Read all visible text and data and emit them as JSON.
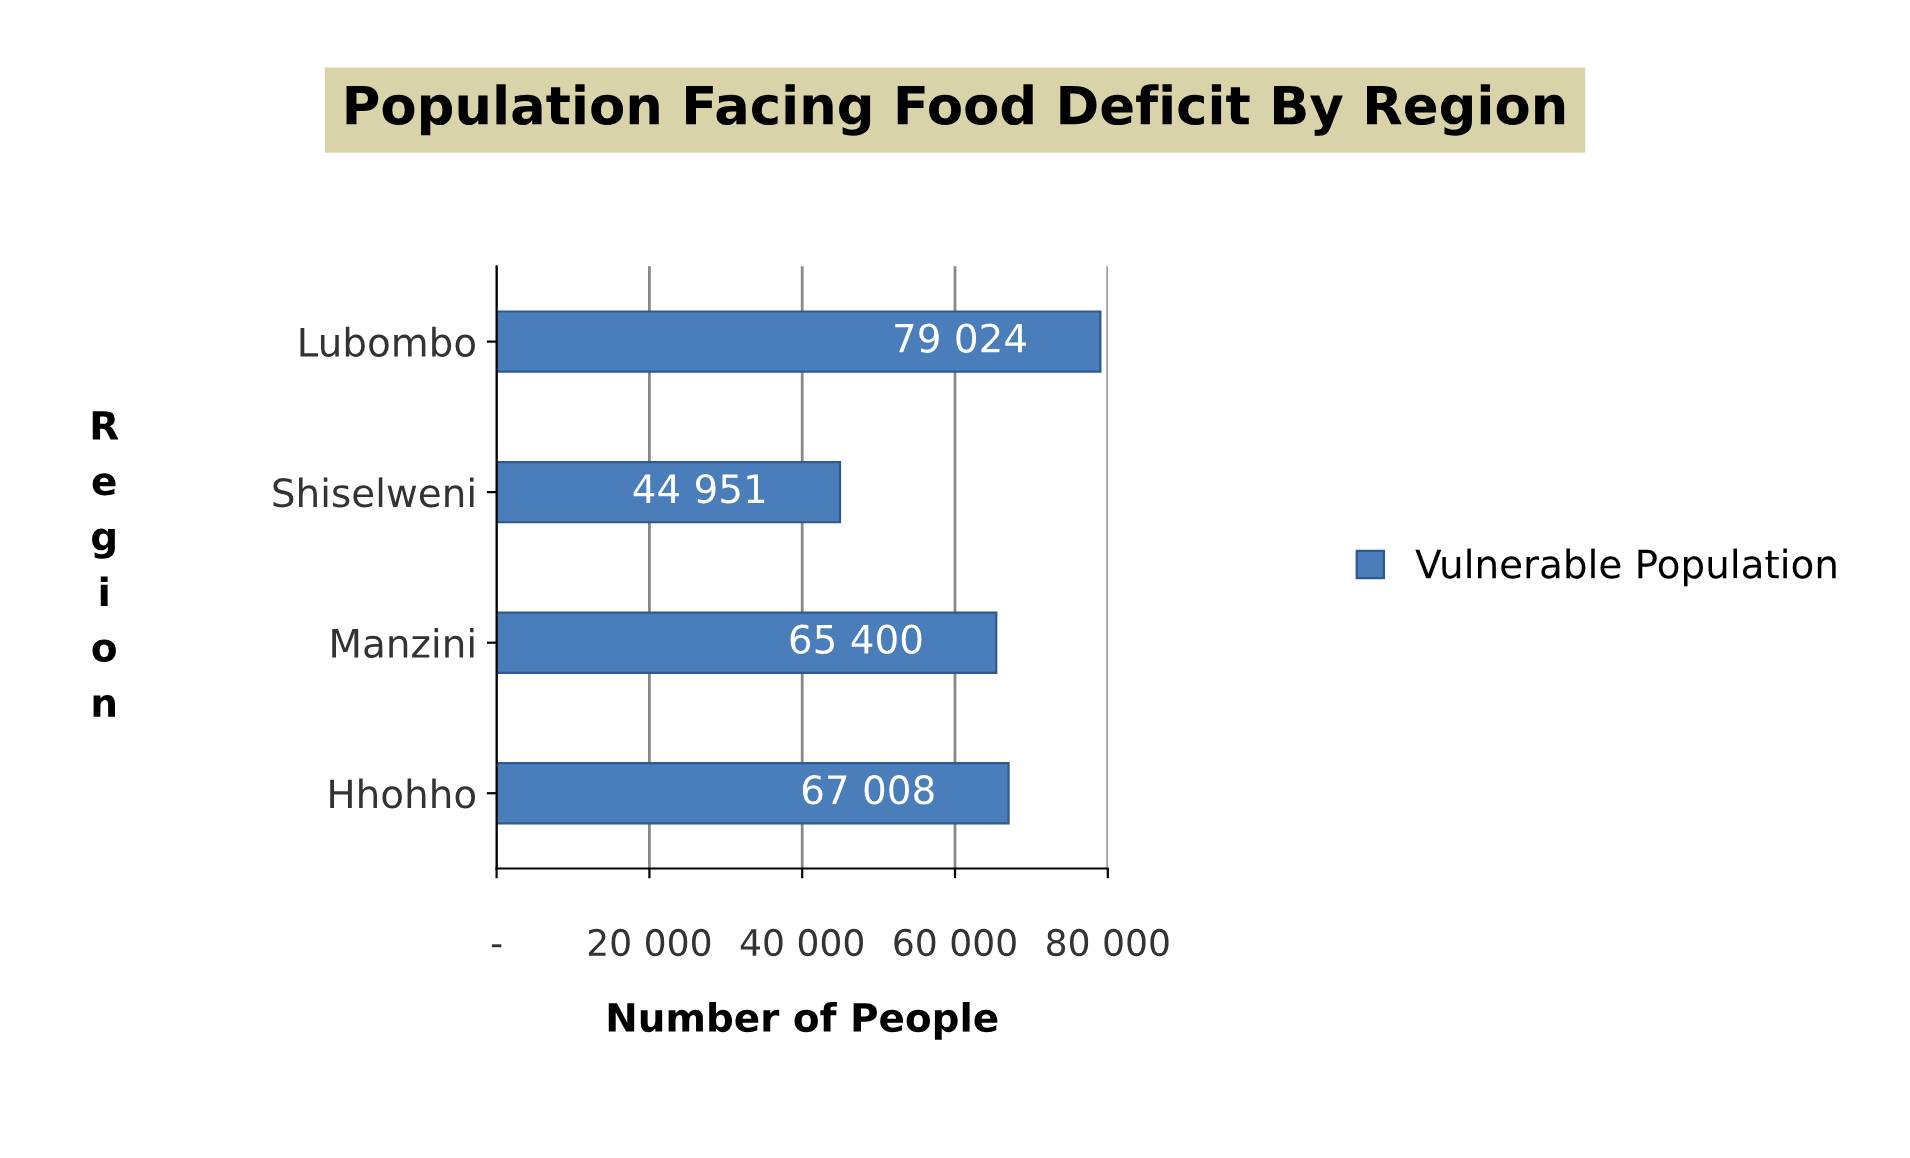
{
  "chart_data": {
    "type": "bar",
    "orientation": "horizontal",
    "title": "Population Facing Food Deficit By Region",
    "xlabel": "Number of People",
    "ylabel": "Region",
    "categories": [
      "Lubombo",
      "Shiselweni",
      "Manzini",
      "Hhohho"
    ],
    "series": [
      {
        "name": "Vulnerable Population",
        "color": "#4a7ebb",
        "values": [
          79024,
          44951,
          65400,
          67008
        ],
        "value_labels": [
          "79 024",
          "44 951",
          "65 400",
          "67 008"
        ]
      }
    ],
    "xlim": [
      0,
      80000
    ],
    "xticks": [
      {
        "value": 0,
        "label": "-"
      },
      {
        "value": 20000,
        "label": "20 000"
      },
      {
        "value": 40000,
        "label": "40 000"
      },
      {
        "value": 60000,
        "label": "60 000"
      },
      {
        "value": 80000,
        "label": "80 000"
      }
    ],
    "grid": "x",
    "legend": "right"
  }
}
